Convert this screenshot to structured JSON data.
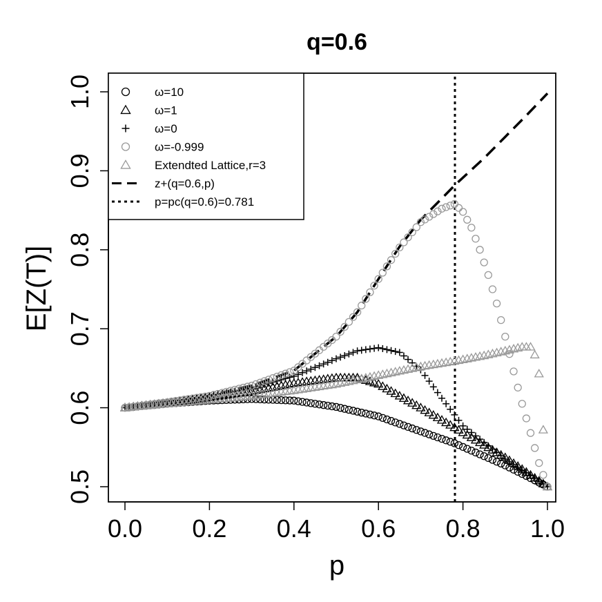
{
  "chart_data": {
    "type": "scatter",
    "title": "q=0.6",
    "xlabel": "p",
    "ylabel": "E[Z(T)]",
    "xlim": [
      0.0,
      1.0
    ],
    "ylim": [
      0.5,
      1.0
    ],
    "x_ticks": [
      "0.0",
      "0.2",
      "0.4",
      "0.6",
      "0.8",
      "1.0"
    ],
    "y_ticks": [
      "0.5",
      "0.6",
      "0.7",
      "0.8",
      "0.9",
      "1.0"
    ],
    "legend_position": "top-left",
    "legend": [
      {
        "label": "ω=10",
        "marker": "circle",
        "color": "#000000"
      },
      {
        "label": "ω=1",
        "marker": "triangle",
        "color": "#000000"
      },
      {
        "label": "ω=0",
        "marker": "plus",
        "color": "#000000"
      },
      {
        "label": "ω=-0.999",
        "marker": "circle",
        "color": "#999999"
      },
      {
        "label": "Extendted Lattice,r=3",
        "marker": "triangle",
        "color": "#999999"
      },
      {
        "label": "z+(q=0.6,p)",
        "line": "dashed",
        "color": "#000000"
      },
      {
        "label": "p=pc(q=0.6)=0.781",
        "line": "dotted",
        "color": "#000000"
      }
    ],
    "series": [
      {
        "name": "ω=10",
        "marker": "circle",
        "color": "#000000",
        "x": [
          0.0,
          0.1,
          0.2,
          0.3,
          0.4,
          0.5,
          0.6,
          0.7,
          0.78,
          0.9,
          1.0
        ],
        "y": [
          0.6,
          0.605,
          0.609,
          0.611,
          0.609,
          0.601,
          0.589,
          0.57,
          0.555,
          0.527,
          0.5
        ]
      },
      {
        "name": "ω=1",
        "marker": "triangle",
        "color": "#000000",
        "x": [
          0.0,
          0.1,
          0.2,
          0.3,
          0.4,
          0.5,
          0.55,
          0.6,
          0.7,
          0.78,
          0.9,
          1.0
        ],
        "y": [
          0.6,
          0.606,
          0.613,
          0.621,
          0.631,
          0.638,
          0.638,
          0.63,
          0.6,
          0.575,
          0.537,
          0.5
        ]
      },
      {
        "name": "ω=0",
        "marker": "plus",
        "color": "#000000",
        "x": [
          0.0,
          0.1,
          0.2,
          0.3,
          0.4,
          0.5,
          0.55,
          0.6,
          0.65,
          0.7,
          0.75,
          0.8,
          0.9,
          1.0
        ],
        "y": [
          0.6,
          0.607,
          0.615,
          0.625,
          0.64,
          0.662,
          0.672,
          0.676,
          0.67,
          0.648,
          0.612,
          0.577,
          0.535,
          0.5
        ]
      },
      {
        "name": "ω=-0.999",
        "marker": "circle",
        "color": "#999999",
        "x": [
          0.0,
          0.1,
          0.2,
          0.3,
          0.4,
          0.5,
          0.55,
          0.6,
          0.65,
          0.7,
          0.75,
          0.78,
          0.8,
          0.82,
          0.84,
          0.86,
          0.88,
          0.9,
          0.92,
          0.94,
          0.96,
          0.98,
          1.0
        ],
        "y": [
          0.6,
          0.607,
          0.615,
          0.628,
          0.647,
          0.69,
          0.721,
          0.763,
          0.803,
          0.835,
          0.852,
          0.858,
          0.848,
          0.828,
          0.8,
          0.768,
          0.732,
          0.69,
          0.646,
          0.605,
          0.568,
          0.53,
          0.5
        ]
      },
      {
        "name": "Extendted Lattice,r=3",
        "marker": "triangle",
        "color": "#999999",
        "x": [
          0.0,
          0.1,
          0.2,
          0.3,
          0.4,
          0.5,
          0.6,
          0.7,
          0.78,
          0.85,
          0.9,
          0.94,
          0.96,
          0.97,
          0.98,
          0.99,
          1.0
        ],
        "y": [
          0.6,
          0.605,
          0.61,
          0.615,
          0.622,
          0.63,
          0.641,
          0.652,
          0.659,
          0.666,
          0.672,
          0.677,
          0.677,
          0.667,
          0.643,
          0.572,
          0.5
        ]
      }
    ],
    "lines": [
      {
        "name": "z+(q=0.6,p)",
        "style": "dashed",
        "color": "#000000",
        "x": [
          0.0,
          0.1,
          0.2,
          0.3,
          0.4,
          0.5,
          0.55,
          0.6,
          0.65,
          0.7,
          0.75,
          0.781,
          0.85,
          0.9,
          0.95,
          1.0
        ],
        "y": [
          0.6,
          0.607,
          0.615,
          0.628,
          0.647,
          0.69,
          0.721,
          0.763,
          0.804,
          0.838,
          0.865,
          0.882,
          0.916,
          0.943,
          0.97,
          0.998
        ]
      },
      {
        "name": "p=pc(q=0.6)=0.781",
        "style": "dotted",
        "color": "#000000",
        "vertical_at": 0.781
      }
    ]
  }
}
